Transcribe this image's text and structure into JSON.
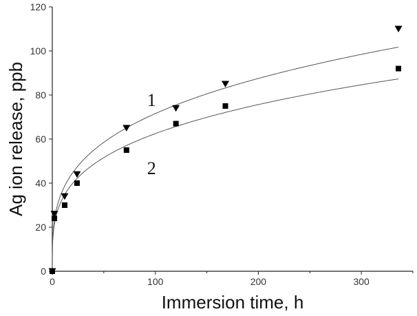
{
  "chart_data": {
    "type": "scatter",
    "xlabel": "Immersion time, h",
    "ylabel": "Ag ion release, ppb",
    "xlim": [
      0,
      350
    ],
    "ylim": [
      0,
      120
    ],
    "xticks": [
      0,
      100,
      200,
      300
    ],
    "yticks": [
      0,
      20,
      40,
      60,
      80,
      100,
      120
    ],
    "grid": false,
    "series": [
      {
        "name": "1",
        "marker": "triangle-down",
        "x": [
          0,
          2,
          12,
          24,
          72,
          120,
          168,
          336
        ],
        "y": [
          0,
          26,
          34,
          44,
          65,
          74,
          85,
          110
        ]
      },
      {
        "name": "2",
        "marker": "square",
        "x": [
          0,
          2,
          12,
          24,
          72,
          120,
          168,
          336
        ],
        "y": [
          0,
          24,
          30,
          40,
          55,
          67,
          75,
          92
        ]
      }
    ],
    "annotations": [
      {
        "text": "1",
        "series": 0,
        "x": 92,
        "y": 75
      },
      {
        "text": "2",
        "series": 1,
        "x": 92,
        "y": 44
      }
    ],
    "colors": {
      "axis": "#222222",
      "curve": "#555555",
      "marker": "#000000"
    }
  }
}
